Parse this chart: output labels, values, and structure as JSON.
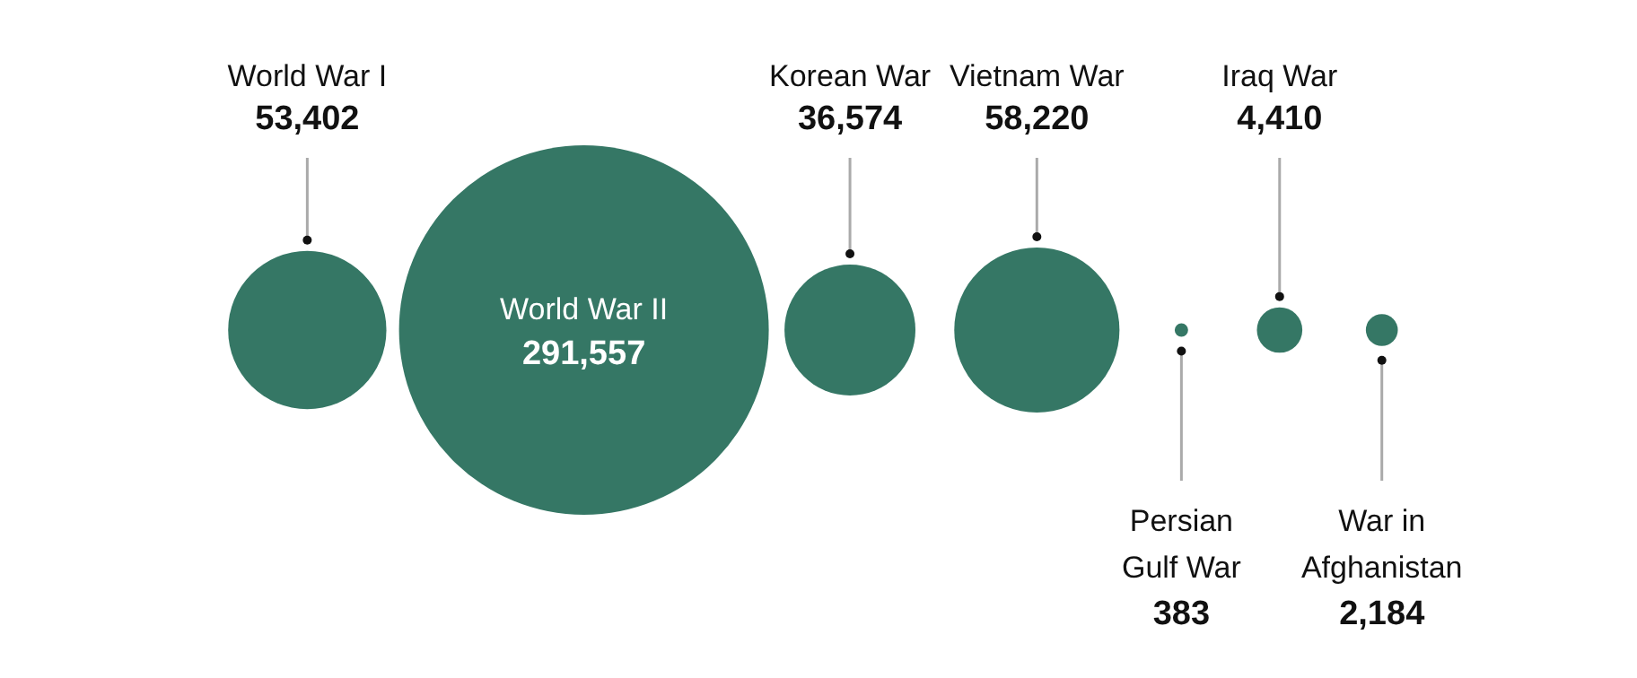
{
  "chart_data": {
    "type": "other",
    "categories": [
      "World War I",
      "World War II",
      "Korean War",
      "Vietnam War",
      "Persian Gulf War",
      "Iraq War",
      "War in Afghanistan"
    ],
    "values": [
      53402,
      291557,
      36574,
      58220,
      383,
      4410,
      2184
    ],
    "value_labels": [
      "53,402",
      "291,557",
      "36,574",
      "58,220",
      "383",
      "4,410",
      "2,184"
    ],
    "color": "#357765"
  }
}
